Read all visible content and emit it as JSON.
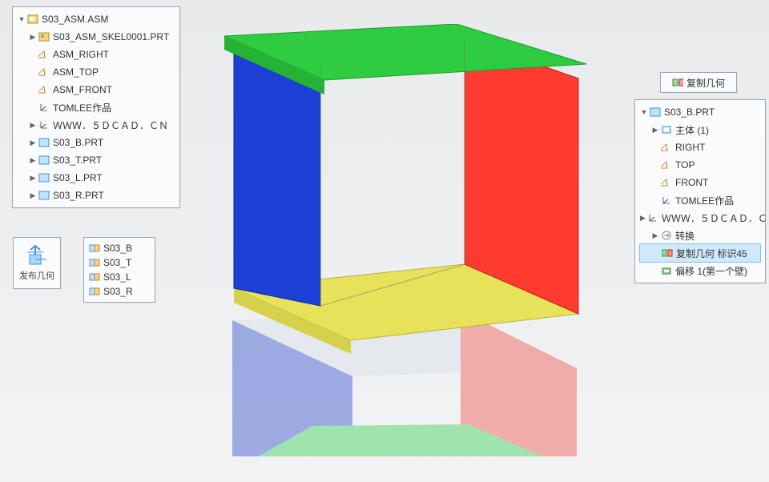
{
  "colors": {
    "green": "#2ecc40",
    "blue": "#1c3fd6",
    "red": "#ff3b30",
    "yellow": "#e7e25a",
    "grey": "#cfd4d9",
    "panel_bg": "#fafbfc",
    "panel_border": "#9aa7b3",
    "selection_bg": "#cfe8fb",
    "selection_border": "#7ec1f2"
  },
  "main_tree": {
    "root": {
      "label": "S03_ASM.ASM",
      "icon": "asm"
    },
    "items": [
      {
        "label": "S03_ASM_SKEL0001.PRT",
        "icon": "prt",
        "indent": 1,
        "expander": "closed"
      },
      {
        "label": "ASM_RIGHT",
        "icon": "datum",
        "indent": 1
      },
      {
        "label": "ASM_TOP",
        "icon": "datum",
        "indent": 1
      },
      {
        "label": "ASM_FRONT",
        "icon": "datum",
        "indent": 1
      },
      {
        "label": "TOMLEE作品",
        "icon": "csys",
        "indent": 1
      },
      {
        "label": "ＷＷＷ．５ＤＣＡＤ．ＣＮ",
        "icon": "csys",
        "indent": 1,
        "expander": "closed"
      },
      {
        "label": "S03_B.PRT",
        "icon": "part",
        "indent": 1,
        "expander": "closed"
      },
      {
        "label": "S03_T.PRT",
        "icon": "part",
        "indent": 1,
        "expander": "closed"
      },
      {
        "label": "S03_L.PRT",
        "icon": "part",
        "indent": 1,
        "expander": "closed"
      },
      {
        "label": "S03_R.PRT",
        "icon": "part",
        "indent": 1,
        "expander": "closed"
      }
    ]
  },
  "publish_panel": {
    "caption": "发布几何"
  },
  "refs_panel": {
    "items": [
      {
        "label": "S03_B",
        "icon": "ref"
      },
      {
        "label": "S03_T",
        "icon": "ref"
      },
      {
        "label": "S03_L",
        "icon": "ref"
      },
      {
        "label": "S03_R",
        "icon": "ref"
      }
    ]
  },
  "copy_geom_button": {
    "label": "复制几何"
  },
  "right_tree": {
    "root": {
      "label": "S03_B.PRT",
      "icon": "part",
      "expander": "open"
    },
    "items": [
      {
        "label": "主体 (1)",
        "icon": "body",
        "indent": 1,
        "expander": "closed"
      },
      {
        "label": "RIGHT",
        "icon": "datum",
        "indent": 1
      },
      {
        "label": "TOP",
        "icon": "datum",
        "indent": 1
      },
      {
        "label": "FRONT",
        "icon": "datum",
        "indent": 1
      },
      {
        "label": "TOMLEE作品",
        "icon": "csys",
        "indent": 1
      },
      {
        "label": "ＷＷＷ．５ＤＣＡＤ．ＣＮ",
        "icon": "csys",
        "indent": 1,
        "expander": "closed"
      },
      {
        "label": "转换",
        "icon": "convert",
        "indent": 1,
        "expander": "closed"
      },
      {
        "label": "复制几何 标识45",
        "icon": "copygeom",
        "indent": 1,
        "selected": true
      },
      {
        "label": "偏移 1(第一个壁)",
        "icon": "offset",
        "indent": 1
      }
    ]
  }
}
